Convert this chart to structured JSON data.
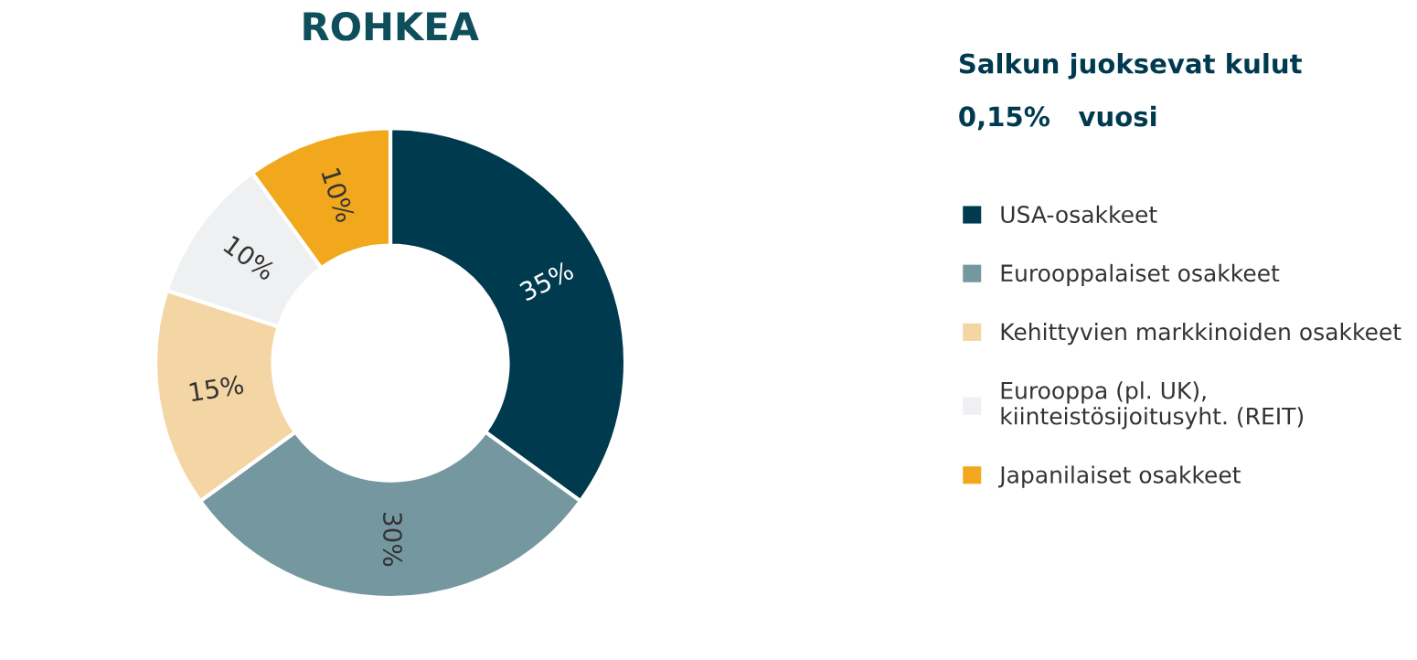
{
  "chart_data": {
    "type": "donut",
    "title": "ROHKEA",
    "categories": [
      "USA-osakkeet",
      "Eurooppalaiset osakkeet",
      "Kehittyvien markkinoiden osakkeet",
      "Eurooppa (pl. UK), kiinteistösijoitusyht. (REIT)",
      "Japanilaiset osakkeet"
    ],
    "values": [
      35,
      30,
      15,
      10,
      10
    ],
    "colors": [
      "#003a4f",
      "#7598a0",
      "#f3d6a4",
      "#eef0f1",
      "#f2a81d"
    ],
    "value_labels": [
      "35%",
      "30%",
      "15%",
      "10%",
      "10%"
    ],
    "annotations": [
      "Salkun juoksevat kulut",
      "0,15%   vuosi"
    ],
    "legend": "right"
  }
}
